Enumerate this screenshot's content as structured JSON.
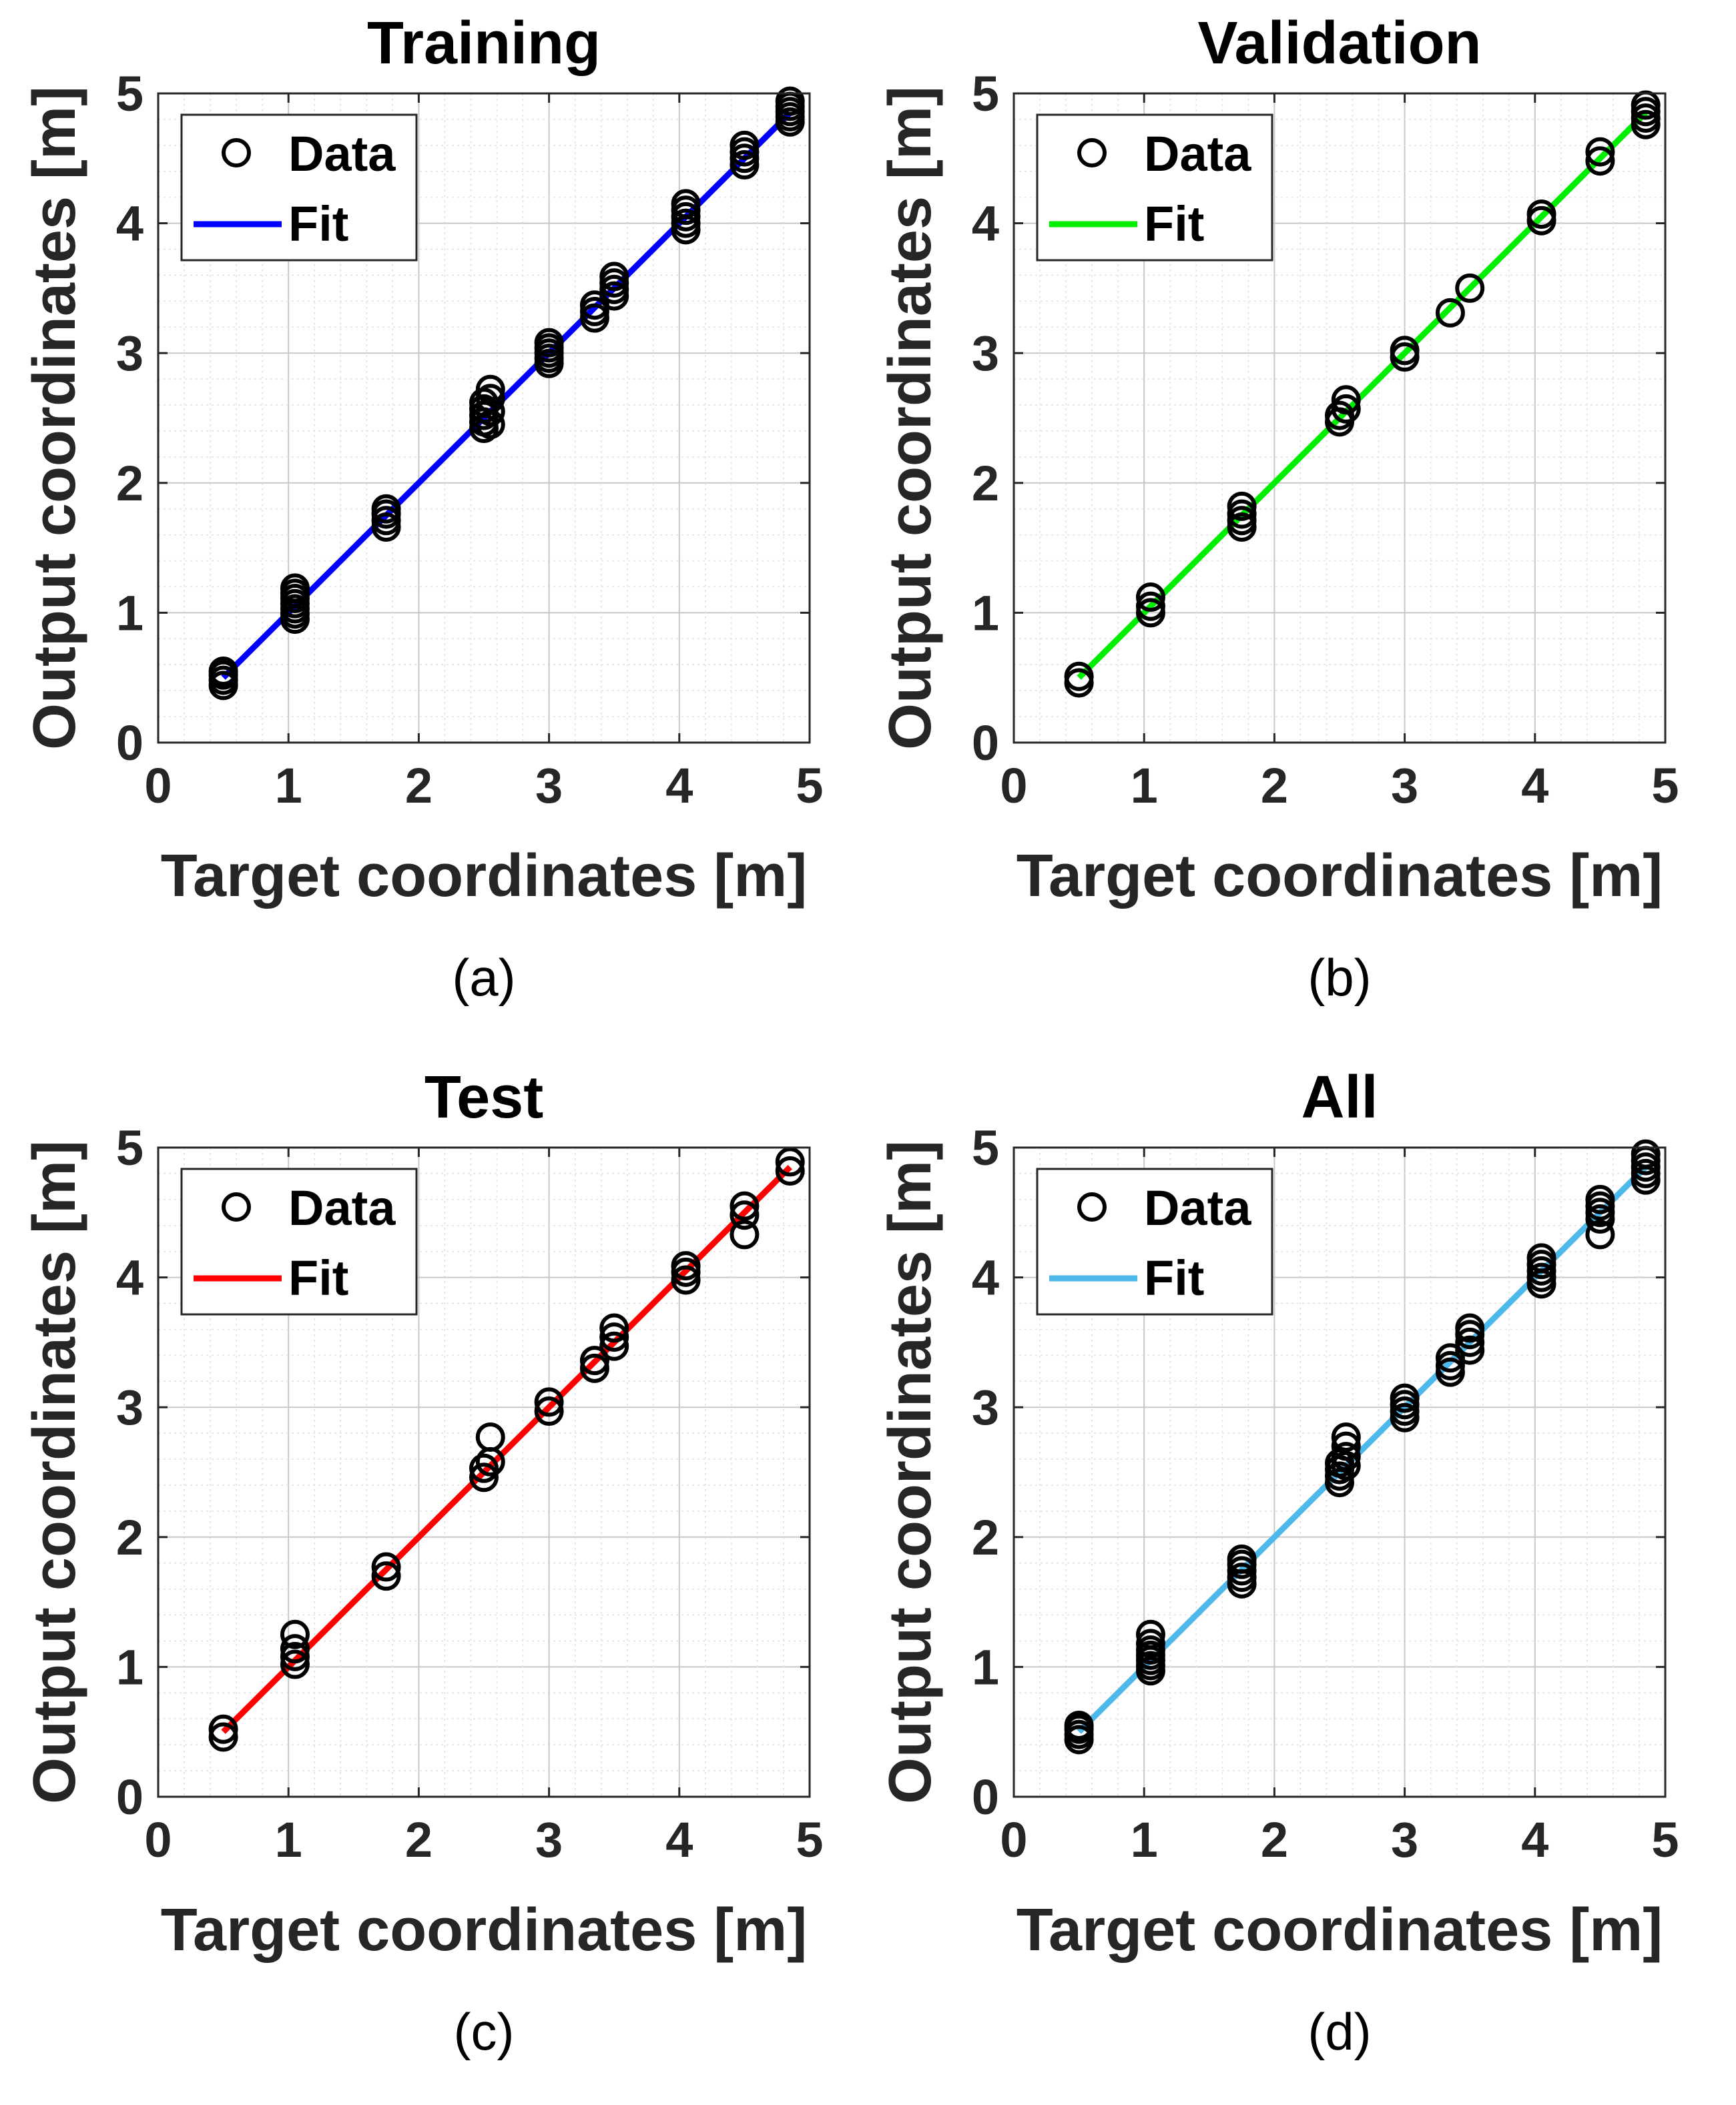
{
  "chart_data": [
    {
      "type": "scatter",
      "title": "Training",
      "caption": "(a)",
      "xlabel": "Target coordinates [m]",
      "ylabel": "Output coordinates [m]",
      "xlim": [
        0,
        5
      ],
      "ylim": [
        0,
        5
      ],
      "xticks": [
        "0",
        "1",
        "2",
        "3",
        "4",
        "5"
      ],
      "yticks": [
        "0",
        "1",
        "2",
        "3",
        "4",
        "5"
      ],
      "grid": true,
      "legend": {
        "position": "top-left",
        "data_label": "Data",
        "fit_label": "Fit"
      },
      "fit": {
        "x": [
          0.5,
          4.85
        ],
        "y": [
          0.5,
          4.85
        ],
        "color": "#0000ff"
      },
      "data": [
        {
          "x": 0.5,
          "y": [
            0.44,
            0.48,
            0.52,
            0.55
          ]
        },
        {
          "x": 1.05,
          "y": [
            0.95,
            0.99,
            1.03,
            1.07,
            1.11,
            1.15,
            1.19
          ]
        },
        {
          "x": 1.75,
          "y": [
            1.66,
            1.71,
            1.76,
            1.8
          ]
        },
        {
          "x": 2.5,
          "y": [
            2.42,
            2.47,
            2.52,
            2.57,
            2.62
          ]
        },
        {
          "x": 2.55,
          "y": [
            2.45,
            2.55,
            2.65,
            2.72
          ]
        },
        {
          "x": 3.0,
          "y": [
            2.92,
            2.96,
            3.0,
            3.04,
            3.08
          ]
        },
        {
          "x": 3.35,
          "y": [
            3.27,
            3.32,
            3.37
          ]
        },
        {
          "x": 3.5,
          "y": [
            3.44,
            3.49,
            3.54,
            3.59
          ]
        },
        {
          "x": 4.05,
          "y": [
            3.95,
            4.0,
            4.05,
            4.1,
            4.15
          ]
        },
        {
          "x": 4.5,
          "y": [
            4.45,
            4.5,
            4.55,
            4.6
          ]
        },
        {
          "x": 4.85,
          "y": [
            4.78,
            4.82,
            4.86,
            4.9,
            4.94
          ]
        }
      ]
    },
    {
      "type": "scatter",
      "title": "Validation",
      "caption": "(b)",
      "xlabel": "Target coordinates [m]",
      "ylabel": "Output coordinates [m]",
      "xlim": [
        0,
        5
      ],
      "ylim": [
        0,
        5
      ],
      "xticks": [
        "0",
        "1",
        "2",
        "3",
        "4",
        "5"
      ],
      "yticks": [
        "0",
        "1",
        "2",
        "3",
        "4",
        "5"
      ],
      "grid": true,
      "legend": {
        "position": "top-left",
        "data_label": "Data",
        "fit_label": "Fit"
      },
      "fit": {
        "x": [
          0.5,
          4.85
        ],
        "y": [
          0.5,
          4.85
        ],
        "color": "#00ee00"
      },
      "data": [
        {
          "x": 0.5,
          "y": [
            0.46,
            0.51
          ]
        },
        {
          "x": 1.05,
          "y": [
            1.0,
            1.05,
            1.12
          ]
        },
        {
          "x": 1.75,
          "y": [
            1.66,
            1.71,
            1.76,
            1.82
          ]
        },
        {
          "x": 2.5,
          "y": [
            2.47,
            2.52
          ]
        },
        {
          "x": 2.55,
          "y": [
            2.57,
            2.64
          ]
        },
        {
          "x": 3.0,
          "y": [
            2.97,
            3.02
          ]
        },
        {
          "x": 3.35,
          "y": [
            3.31
          ]
        },
        {
          "x": 3.5,
          "y": [
            3.5
          ]
        },
        {
          "x": 4.05,
          "y": [
            4.02,
            4.07
          ]
        },
        {
          "x": 4.5,
          "y": [
            4.48,
            4.55
          ]
        },
        {
          "x": 4.85,
          "y": [
            4.76,
            4.81,
            4.86,
            4.91
          ]
        }
      ]
    },
    {
      "type": "scatter",
      "title": "Test",
      "caption": "(c)",
      "xlabel": "Target coordinates [m]",
      "ylabel": "Output coordinates [m]",
      "xlim": [
        0,
        5
      ],
      "ylim": [
        0,
        5
      ],
      "xticks": [
        "0",
        "1",
        "2",
        "3",
        "4",
        "5"
      ],
      "yticks": [
        "0",
        "1",
        "2",
        "3",
        "4",
        "5"
      ],
      "grid": true,
      "legend": {
        "position": "top-left",
        "data_label": "Data",
        "fit_label": "Fit"
      },
      "fit": {
        "x": [
          0.5,
          4.85
        ],
        "y": [
          0.5,
          4.85
        ],
        "color": "#ff0000"
      },
      "data": [
        {
          "x": 0.5,
          "y": [
            0.46,
            0.52
          ]
        },
        {
          "x": 1.05,
          "y": [
            1.02,
            1.08,
            1.14,
            1.25
          ]
        },
        {
          "x": 1.75,
          "y": [
            1.7,
            1.77
          ]
        },
        {
          "x": 2.5,
          "y": [
            2.46,
            2.53
          ]
        },
        {
          "x": 2.55,
          "y": [
            2.58,
            2.77
          ]
        },
        {
          "x": 3.0,
          "y": [
            2.97,
            3.04
          ]
        },
        {
          "x": 3.35,
          "y": [
            3.3,
            3.36
          ]
        },
        {
          "x": 3.5,
          "y": [
            3.47,
            3.54,
            3.61
          ]
        },
        {
          "x": 4.05,
          "y": [
            3.98,
            4.04,
            4.09
          ]
        },
        {
          "x": 4.5,
          "y": [
            4.33,
            4.48,
            4.55
          ]
        },
        {
          "x": 4.85,
          "y": [
            4.82,
            4.89
          ]
        }
      ]
    },
    {
      "type": "scatter",
      "title": "All",
      "caption": "(d)",
      "xlabel": "Target coordinates [m]",
      "ylabel": "Output coordinates [m]",
      "xlim": [
        0,
        5
      ],
      "ylim": [
        0,
        5
      ],
      "xticks": [
        "0",
        "1",
        "2",
        "3",
        "4",
        "5"
      ],
      "yticks": [
        "0",
        "1",
        "2",
        "3",
        "4",
        "5"
      ],
      "grid": true,
      "legend": {
        "position": "top-left",
        "data_label": "Data",
        "fit_label": "Fit"
      },
      "fit": {
        "x": [
          0.5,
          4.85
        ],
        "y": [
          0.5,
          4.85
        ],
        "color": "#4db8ea"
      },
      "data": [
        {
          "x": 0.5,
          "y": [
            0.44,
            0.48,
            0.52,
            0.55
          ]
        },
        {
          "x": 1.05,
          "y": [
            0.97,
            1.01,
            1.05,
            1.09,
            1.13,
            1.18,
            1.25
          ]
        },
        {
          "x": 1.75,
          "y": [
            1.64,
            1.69,
            1.74,
            1.79,
            1.83
          ]
        },
        {
          "x": 2.5,
          "y": [
            2.42,
            2.47,
            2.52,
            2.57
          ]
        },
        {
          "x": 2.55,
          "y": [
            2.55,
            2.62,
            2.7,
            2.77
          ]
        },
        {
          "x": 3.0,
          "y": [
            2.92,
            2.97,
            3.02,
            3.07
          ]
        },
        {
          "x": 3.35,
          "y": [
            3.27,
            3.32,
            3.38
          ]
        },
        {
          "x": 3.5,
          "y": [
            3.44,
            3.5,
            3.56,
            3.61
          ]
        },
        {
          "x": 4.05,
          "y": [
            3.95,
            4.0,
            4.05,
            4.1,
            4.15
          ]
        },
        {
          "x": 4.5,
          "y": [
            4.33,
            4.45,
            4.5,
            4.55,
            4.6
          ]
        },
        {
          "x": 4.85,
          "y": [
            4.75,
            4.8,
            4.85,
            4.9,
            4.95
          ]
        }
      ]
    }
  ]
}
